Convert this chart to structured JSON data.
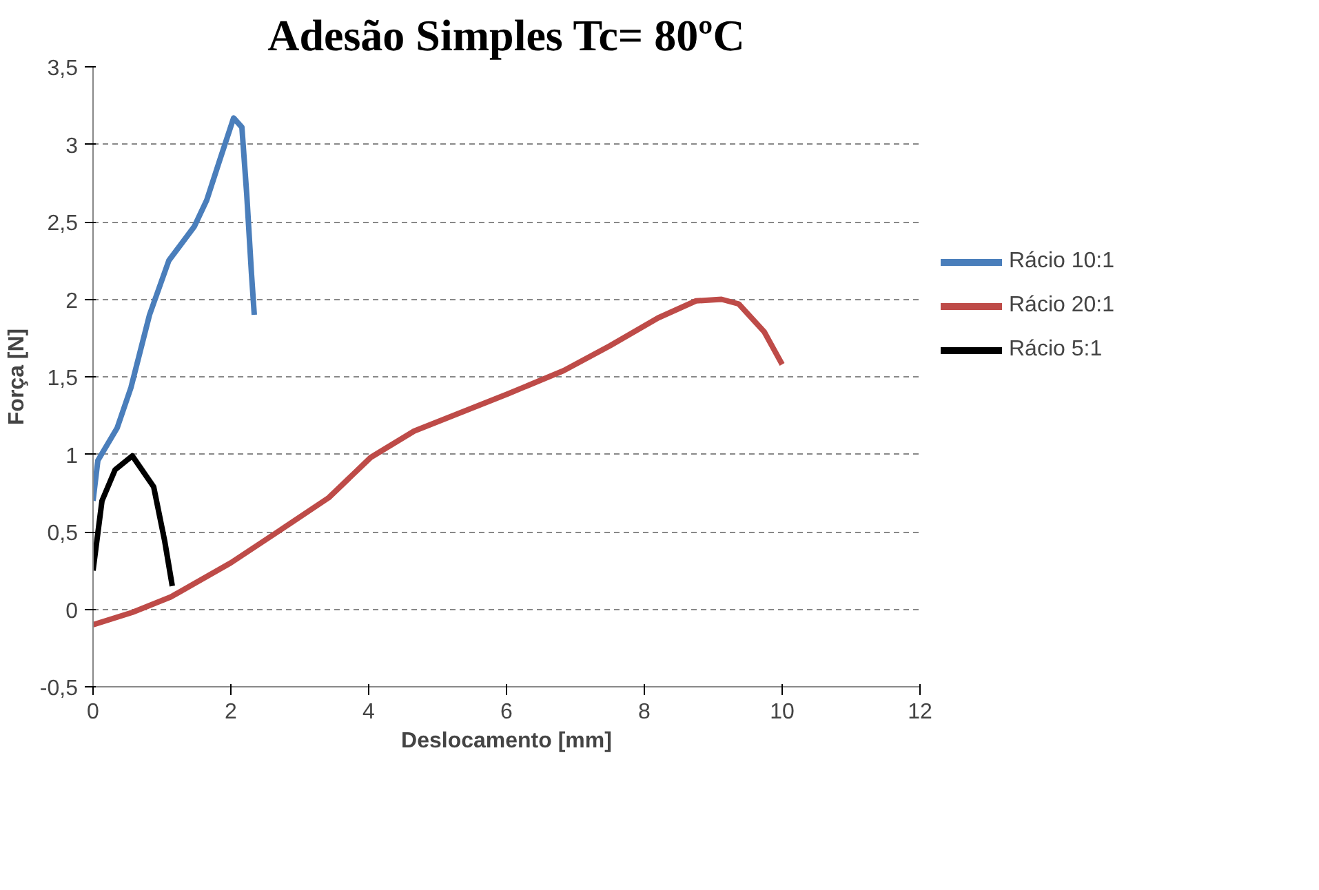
{
  "chart_data": {
    "type": "line",
    "title": "Adesão Simples Tc= 80ºC",
    "xlabel": "Deslocamento [mm]",
    "ylabel": "Força [N]",
    "xlim": [
      0,
      12
    ],
    "xticks": [
      0,
      2,
      4,
      6,
      8,
      10,
      12
    ],
    "ylim": [
      -0.5,
      3.5
    ],
    "yticks": [
      {
        "value": -0.5,
        "label": "-0,5"
      },
      0,
      {
        "value": 0.5,
        "label": "0,5"
      },
      1,
      {
        "value": 1.5,
        "label": "1,5"
      },
      2,
      {
        "value": 2.5,
        "label": "2,5"
      },
      3,
      {
        "value": 3.5,
        "label": "3,5"
      }
    ],
    "grid": "y",
    "legend": "right",
    "marker": "none",
    "line_style": "solid",
    "series": [
      {
        "name": "Rácio 10:1",
        "color": "#4a7ebb",
        "x": [
          0,
          0.07,
          0.35,
          0.55,
          0.82,
          1.1,
          1.47,
          1.65,
          1.84,
          2.04,
          2.16,
          2.23,
          2.3,
          2.34
        ],
        "values": [
          0.7,
          0.96,
          1.17,
          1.43,
          1.9,
          2.25,
          2.47,
          2.64,
          2.9,
          3.17,
          3.11,
          2.68,
          2.16,
          1.9
        ]
      },
      {
        "name": "Rácio 20:1",
        "color": "#be4b48",
        "x": [
          0,
          0.57,
          1.13,
          2.0,
          2.68,
          3.42,
          4.03,
          4.66,
          6.02,
          6.83,
          7.5,
          8.2,
          8.75,
          9.12,
          9.37,
          9.74,
          10.0
        ],
        "values": [
          -0.1,
          -0.02,
          0.08,
          0.3,
          0.5,
          0.72,
          0.98,
          1.15,
          1.39,
          1.54,
          1.7,
          1.88,
          1.99,
          2.0,
          1.97,
          1.79,
          1.58
        ]
      },
      {
        "name": "Rácio 5:1",
        "color": "#000000",
        "x": [
          0,
          0.13,
          0.32,
          0.57,
          0.88,
          1.04,
          1.15
        ],
        "values": [
          0.25,
          0.7,
          0.9,
          0.99,
          0.79,
          0.44,
          0.15
        ]
      }
    ]
  }
}
